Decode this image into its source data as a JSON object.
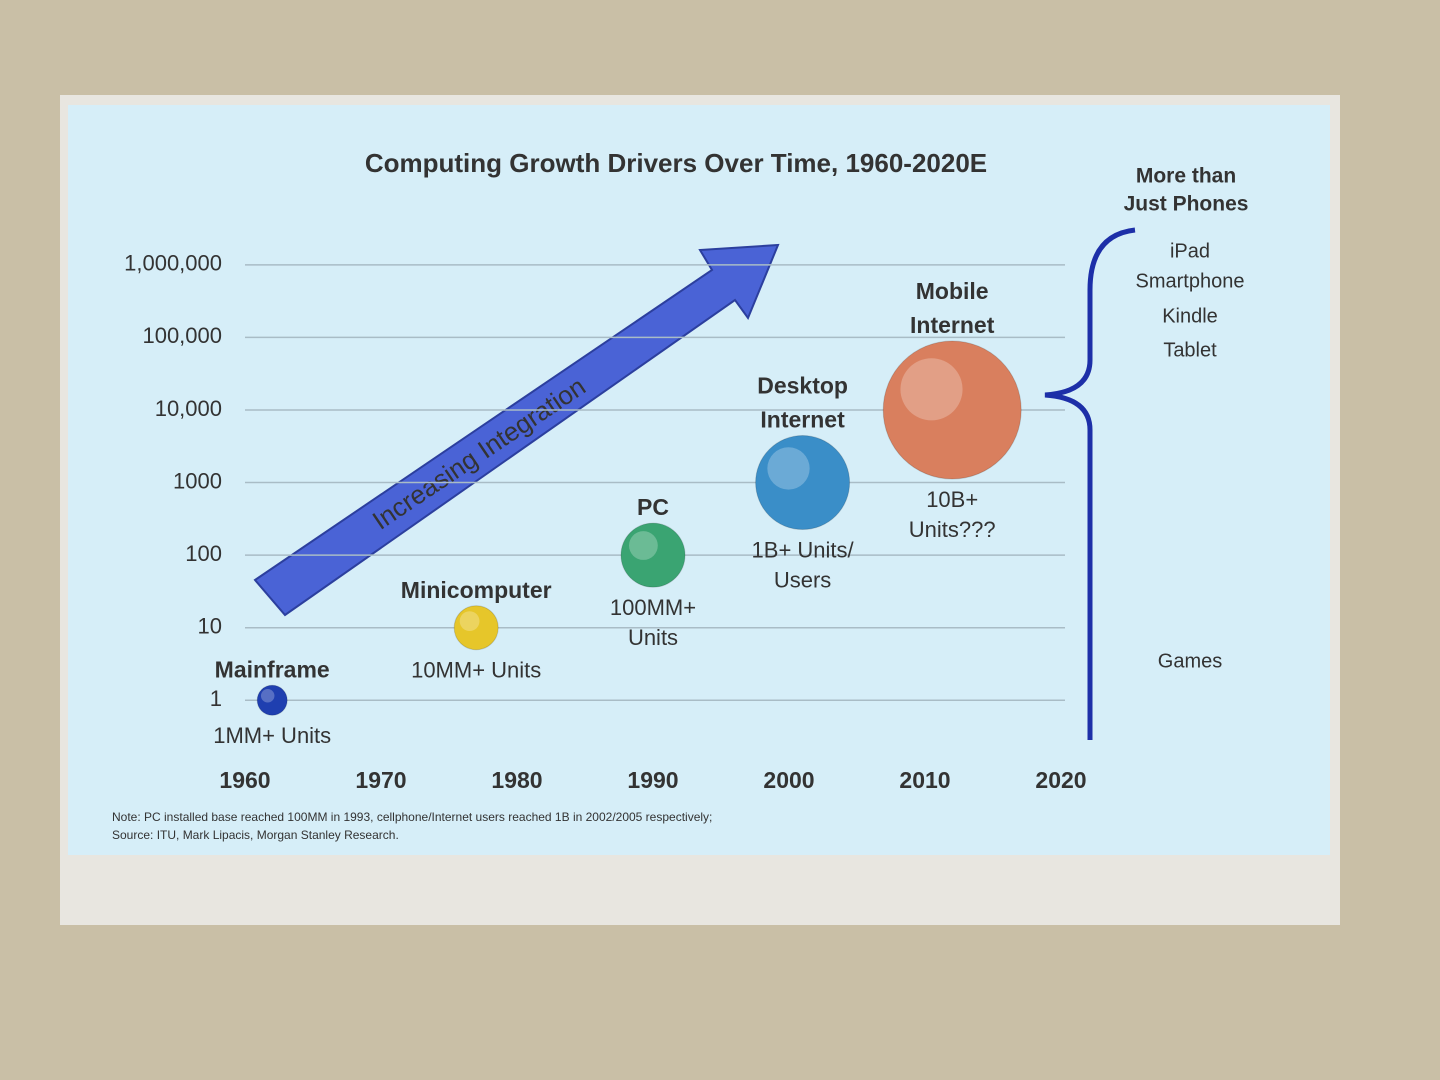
{
  "chart_data": {
    "type": "bubble",
    "title": "Computing Growth Drivers Over Time, 1960-2020E",
    "categories": [
      [
        "Mainframe"
      ],
      [
        "Minicomputer"
      ],
      [
        "PC"
      ],
      [
        "Desktop",
        "Internet"
      ],
      [
        "Mobile",
        "Internet"
      ]
    ],
    "x": [
      1962,
      1977,
      1990,
      2001,
      2012
    ],
    "values": [
      1,
      10,
      100,
      1000,
      10000
    ],
    "sizes": [
      15,
      22,
      32,
      47,
      69
    ],
    "colors": [
      "#1f3fb0",
      "#e6c62a",
      "#3aa472",
      "#3a8ec8",
      "#d97f5e"
    ],
    "unit_labels": [
      [
        "1MM+ Units"
      ],
      [
        "10MM+ Units"
      ],
      [
        "100MM+",
        "Units"
      ],
      [
        "1B+ Units/",
        "Users"
      ],
      [
        "10B+",
        "Units???"
      ]
    ],
    "xlim": [
      1955,
      2025
    ],
    "xticks": [
      1960,
      1970,
      1980,
      1990,
      2000,
      2010,
      2020
    ],
    "ylim": [
      0.2,
      2000000
    ],
    "yticks": [
      1,
      10,
      100,
      1000,
      {
        "value": 10000,
        "label": "10,000"
      },
      {
        "value": 100000,
        "label": "100,000"
      },
      {
        "value": 1000000,
        "label": "1,000,000"
      }
    ],
    "log_scale": true,
    "grid": true,
    "arrow_label": "Increasing Integration",
    "side_panel": {
      "title": [
        "More than",
        "Just Phones"
      ],
      "items": [
        "iPad",
        "Smartphone",
        "Kindle",
        "Tablet",
        "Games"
      ],
      "item_colors": [
        "#444",
        "#1a6fc4",
        "#444",
        "#1a6fc4",
        "#1a6fc4"
      ]
    },
    "note": "Note: PC installed base reached 100MM in 1993, cellphone/Internet users reached 1B in 2002/2005 respectively;",
    "source": "Source: ITU, Mark Lipacis, Morgan Stanley Research."
  }
}
